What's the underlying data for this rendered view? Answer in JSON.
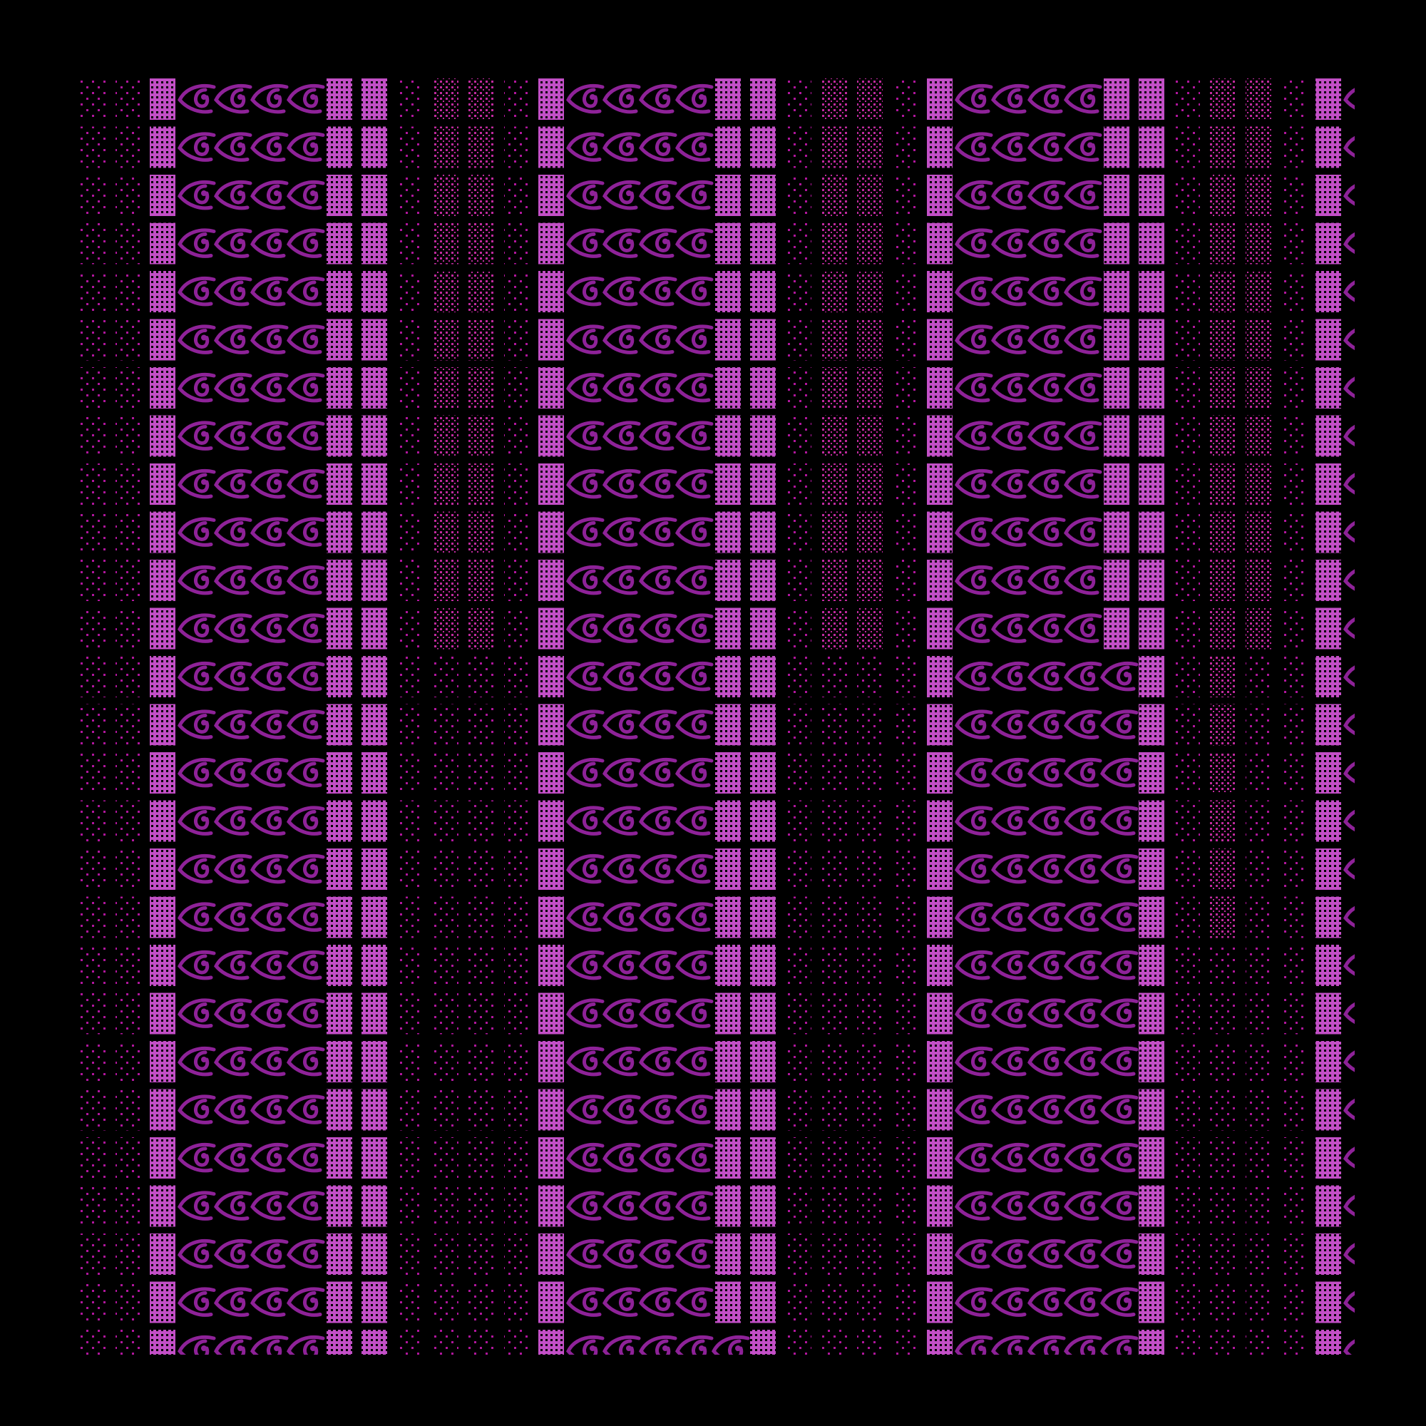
{
  "pattern": {
    "background_color": "#000000",
    "solid_tile_color": "#c24fc6",
    "dot_color": "#b0169c",
    "dot_color_dense": "#c02a9e",
    "eye_color": "#8e2298",
    "icon": "eye-icon",
    "rows": 27,
    "blocks": 4,
    "eyes_per_strip": 4,
    "dotted_columns_per_block": 4
  }
}
